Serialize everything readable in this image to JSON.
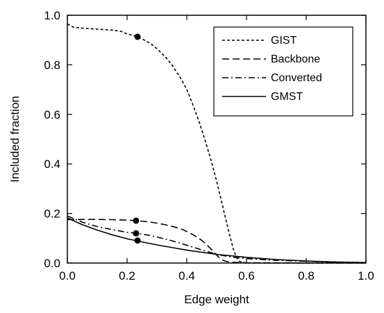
{
  "chart_data": {
    "type": "line",
    "title": "",
    "xlabel": "Edge weight",
    "ylabel": "Included fraction",
    "xlim": [
      0.0,
      1.0
    ],
    "ylim": [
      0.0,
      1.0
    ],
    "xticks": [
      "0.0",
      "0.2",
      "0.4",
      "0.6",
      "0.8",
      "1.0"
    ],
    "yticks": [
      "0.0",
      "0.2",
      "0.4",
      "0.6",
      "0.8",
      "1.0"
    ],
    "grid": false,
    "legend_position": "top-right",
    "series": [
      {
        "name": "GIST",
        "dash": "short-dash",
        "x": [
          0.0,
          0.02,
          0.05,
          0.1,
          0.15,
          0.18,
          0.2,
          0.23,
          0.25,
          0.28,
          0.3,
          0.33,
          0.35,
          0.38,
          0.4,
          0.42,
          0.44,
          0.46,
          0.48,
          0.5,
          0.52,
          0.54,
          0.555,
          0.565,
          0.575,
          0.585,
          0.6,
          0.65,
          0.7,
          0.8,
          0.9,
          1.0
        ],
        "y": [
          0.965,
          0.952,
          0.948,
          0.944,
          0.94,
          0.935,
          0.925,
          0.915,
          0.905,
          0.885,
          0.865,
          0.83,
          0.8,
          0.745,
          0.7,
          0.64,
          0.575,
          0.5,
          0.42,
          0.33,
          0.23,
          0.13,
          0.06,
          0.025,
          0.008,
          0.002,
          0.0,
          0.0,
          0.0,
          0.0,
          0.0,
          0.0
        ]
      },
      {
        "name": "Backbone",
        "dash": "long-dash",
        "x": [
          0.0,
          0.05,
          0.1,
          0.15,
          0.2,
          0.23,
          0.27,
          0.3,
          0.33,
          0.36,
          0.39,
          0.42,
          0.45,
          0.47,
          0.49,
          0.5,
          0.51,
          0.52,
          0.53,
          0.55,
          0.6,
          0.7,
          0.8,
          0.9,
          1.0
        ],
        "y": [
          0.175,
          0.176,
          0.176,
          0.175,
          0.173,
          0.171,
          0.167,
          0.161,
          0.154,
          0.145,
          0.133,
          0.115,
          0.092,
          0.07,
          0.045,
          0.032,
          0.02,
          0.012,
          0.007,
          0.003,
          0.001,
          0.0,
          0.0,
          0.0,
          0.0
        ]
      },
      {
        "name": "Converted",
        "dash": "dash-dot",
        "x": [
          0.0,
          0.05,
          0.1,
          0.15,
          0.2,
          0.23,
          0.27,
          0.3,
          0.35,
          0.4,
          0.45,
          0.5,
          0.55,
          0.6,
          0.65,
          0.7,
          0.8,
          0.9,
          1.0
        ],
        "y": [
          0.19,
          0.165,
          0.147,
          0.135,
          0.124,
          0.12,
          0.113,
          0.105,
          0.09,
          0.072,
          0.053,
          0.035,
          0.024,
          0.018,
          0.014,
          0.011,
          0.007,
          0.004,
          0.002
        ]
      },
      {
        "name": "GMST",
        "dash": "solid",
        "x": [
          0.0,
          0.05,
          0.1,
          0.15,
          0.2,
          0.23,
          0.3,
          0.4,
          0.5,
          0.6,
          0.7,
          0.8,
          0.9,
          1.0
        ],
        "y": [
          0.182,
          0.155,
          0.133,
          0.114,
          0.098,
          0.09,
          0.073,
          0.052,
          0.035,
          0.023,
          0.014,
          0.008,
          0.004,
          0.002
        ]
      }
    ],
    "markers": [
      {
        "series": "GIST",
        "x": 0.235,
        "y": 0.913
      },
      {
        "series": "Backbone",
        "x": 0.23,
        "y": 0.171
      },
      {
        "series": "Converted",
        "x": 0.23,
        "y": 0.12
      },
      {
        "series": "GMST",
        "x": 0.235,
        "y": 0.091
      }
    ]
  }
}
